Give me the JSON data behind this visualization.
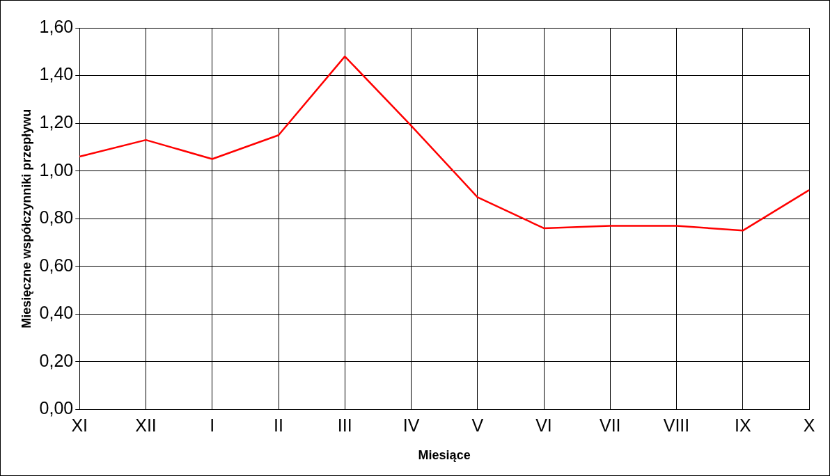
{
  "chart_data": {
    "type": "line",
    "xlabel": "Miesiące",
    "ylabel": "Miesięczne współczynniki przepływu",
    "categories": [
      "XI",
      "XII",
      "I",
      "II",
      "III",
      "IV",
      "V",
      "VI",
      "VII",
      "VIII",
      "IX",
      "X"
    ],
    "series": [
      {
        "color": "#ff0000",
        "values": [
          1.06,
          1.13,
          1.05,
          1.15,
          1.48,
          1.19,
          0.89,
          0.76,
          0.77,
          0.77,
          0.75,
          0.92
        ]
      }
    ],
    "ylim": [
      0,
      1.6
    ],
    "yticks": [
      {
        "value": 0,
        "label": "0,00"
      },
      {
        "value": 0.2,
        "label": "0,20"
      },
      {
        "value": 0.4,
        "label": "0,40"
      },
      {
        "value": 0.6,
        "label": "0,60"
      },
      {
        "value": 0.8,
        "label": "0,80"
      },
      {
        "value": 1,
        "label": "1,00"
      },
      {
        "value": 1.2,
        "label": "1,20"
      },
      {
        "value": 1.4,
        "label": "1,40"
      },
      {
        "value": 1.6,
        "label": "1,60"
      }
    ],
    "grid": true,
    "legend": false,
    "marker": "none",
    "line_style": "solid"
  }
}
